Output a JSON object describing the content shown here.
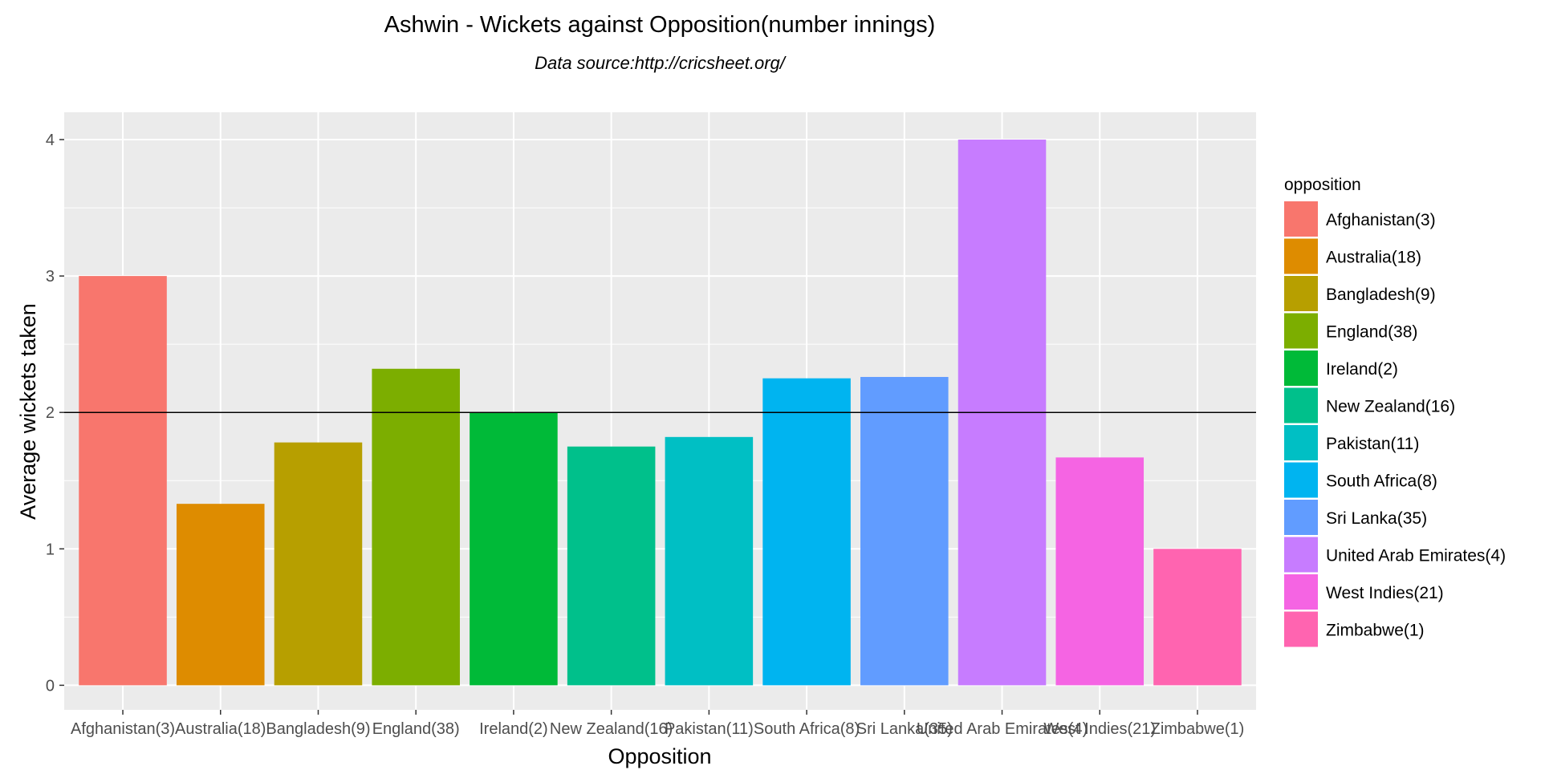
{
  "chart_data": {
    "type": "bar",
    "title": "Ashwin - Wickets against Opposition(number innings)",
    "subtitle": "Data source:http://cricsheet.org/",
    "xlabel": "Opposition",
    "ylabel": "Average wickets taken",
    "ylim": [
      -0.18,
      4.2
    ],
    "yticks": [
      0,
      1,
      2,
      3,
      4
    ],
    "categories": [
      "Afghanistan(3)",
      "Australia(18)",
      "Bangladesh(9)",
      "England(38)",
      "Ireland(2)",
      "New Zealand(16)",
      "Pakistan(11)",
      "South Africa(8)",
      "Sri Lanka(35)",
      "United Arab Emirates(4)",
      "West Indies(21)",
      "Zimbabwe(1)"
    ],
    "values": [
      3.0,
      1.33,
      1.78,
      2.32,
      2.0,
      1.75,
      1.82,
      2.25,
      2.26,
      4.0,
      1.67,
      1.0
    ],
    "colors": [
      "#F8766D",
      "#DE8C00",
      "#B79F00",
      "#7CAE00",
      "#00BA38",
      "#00C08B",
      "#00BFC4",
      "#00B4F0",
      "#619CFF",
      "#C77CFF",
      "#F564E3",
      "#FF64B0"
    ],
    "reference_line": 2,
    "grid": true,
    "panel_background": "#EBEBEB",
    "legend": {
      "title": "opposition",
      "position": "right"
    }
  }
}
